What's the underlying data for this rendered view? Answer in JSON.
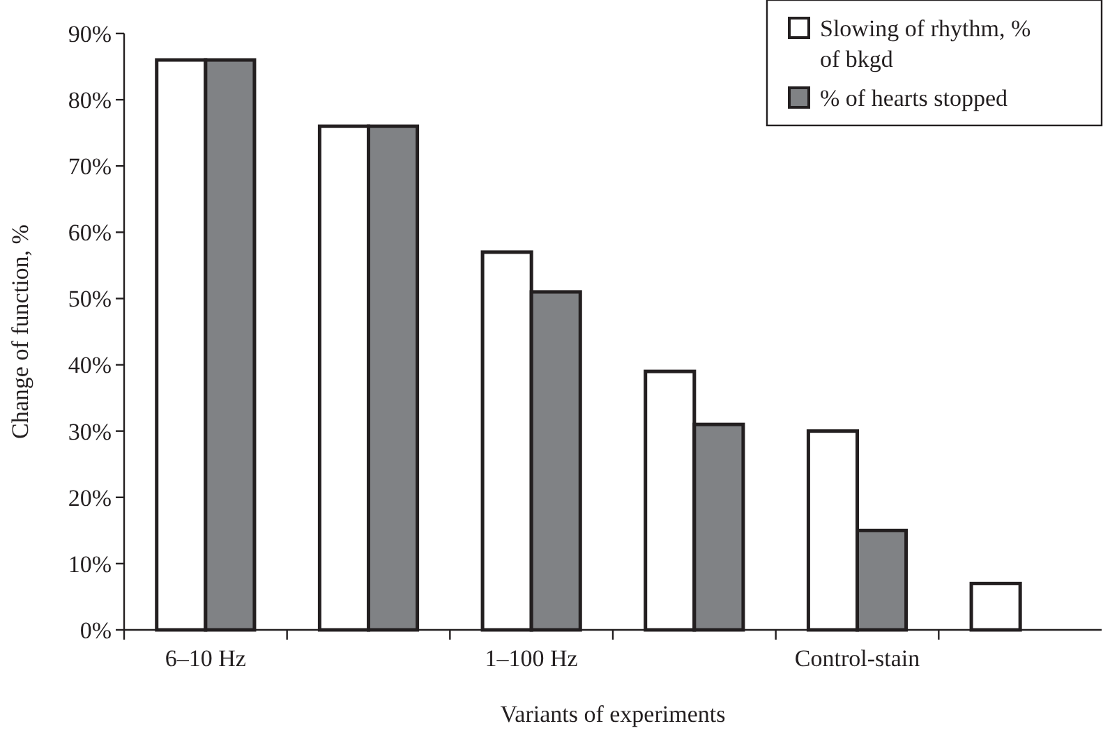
{
  "chart_data": {
    "type": "bar",
    "xlabel": "Variants of experiments",
    "ylabel": "Change of function, %",
    "categories": [
      "6–10 Hz",
      null,
      "1–100 Hz",
      null,
      "Control-stain",
      null
    ],
    "series": [
      {
        "name": "Slowing of rhythm, % of bkgd",
        "color": "#ffffff",
        "values": [
          86,
          76,
          57,
          39,
          30,
          7
        ]
      },
      {
        "name": "% of hearts stopped",
        "color": "#808285",
        "values": [
          86,
          76,
          51,
          31,
          15,
          null
        ]
      }
    ],
    "ylim": [
      0,
      90
    ],
    "yticks": [
      {
        "value": 0,
        "label": "0%"
      },
      {
        "value": 10,
        "label": "10%"
      },
      {
        "value": 20,
        "label": "20%"
      },
      {
        "value": 30,
        "label": "30%"
      },
      {
        "value": 40,
        "label": "40%"
      },
      {
        "value": 50,
        "label": "50%"
      },
      {
        "value": 60,
        "label": "60%"
      },
      {
        "value": 70,
        "label": "70%"
      },
      {
        "value": 80,
        "label": "80%"
      },
      {
        "value": 90,
        "label": "90%"
      }
    ],
    "grid": false,
    "legend": "top right"
  }
}
